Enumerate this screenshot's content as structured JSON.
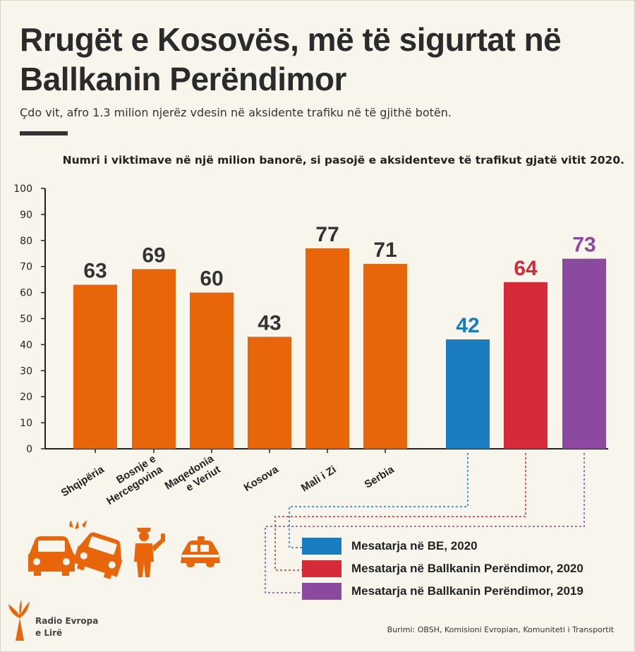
{
  "header": {
    "title": "Rrugët e Kosovës, më të sigurtat në Ballkanin Perëndimor",
    "subtitle": "Çdo vit, afro 1.3 milion njerëz vdesin në aksidente trafiku në të gjithë botën."
  },
  "colors": {
    "country": "#e8650a",
    "eu": "#1a7dc1",
    "balkan2020": "#d62a38",
    "balkan2019": "#8b4aa0"
  },
  "chart_data": {
    "type": "bar",
    "title": "Numri i viktimave në një milion banorë, si pasojë e aksidenteve të trafikut gjatë vitit 2020.",
    "ylim": [
      0,
      100
    ],
    "yticks": [
      0,
      10,
      20,
      30,
      40,
      50,
      60,
      70,
      80,
      90,
      100
    ],
    "grid": false,
    "categories": [
      "Shqipëria",
      "Bosnje e Hercegovina",
      "Maqedonia e Veriut",
      "Kosova",
      "Mali i Zi",
      "Serbia"
    ],
    "category_label_lines": [
      [
        "Shqipëria"
      ],
      [
        "Bosnje e",
        "Hercegovina"
      ],
      [
        "Maqedonia",
        "e Veriut"
      ],
      [
        "Kosova"
      ],
      [
        "Mali i Zi"
      ],
      [
        "Serbia"
      ]
    ],
    "values": [
      63,
      69,
      60,
      43,
      77,
      71
    ],
    "averages": [
      {
        "name": "Mesatarja në BE, 2020",
        "value": 42,
        "color": "#1a7dc1"
      },
      {
        "name": "Mesatarja në Ballkanin Perëndimor, 2020",
        "value": 64,
        "color": "#d62a38"
      },
      {
        "name": "Mesatarja në Ballkanin Perëndimor, 2019",
        "value": 73,
        "color": "#8b4aa0"
      }
    ]
  },
  "brand": {
    "line1": "Radio Evropa",
    "line2": "e Lirë"
  },
  "source": "Burimi: OBSH, Komisioni Evropian, Komuniteti i Transportit",
  "icons": [
    "car-crash-icon",
    "traffic-police-icon",
    "police-car-icon",
    "rferl-logo-icon"
  ]
}
